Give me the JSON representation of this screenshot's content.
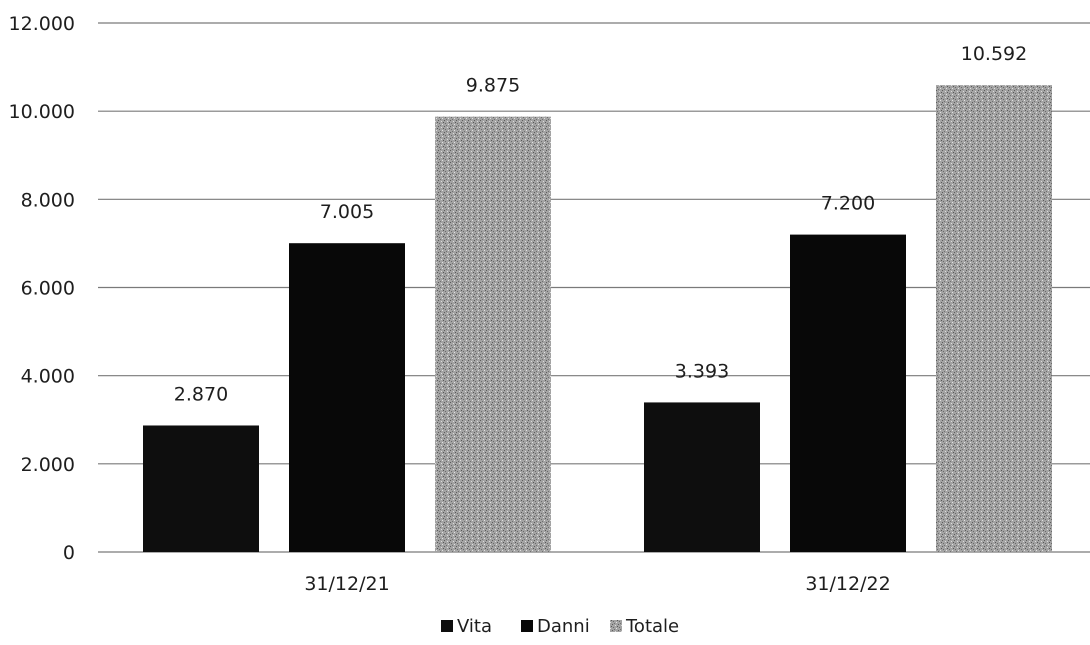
{
  "chart_data": {
    "type": "bar",
    "categories": [
      "31/12/21",
      "31/12/22"
    ],
    "series": [
      {
        "name": "Vita",
        "values": [
          2870,
          3393
        ],
        "color": "#0e0e0e"
      },
      {
        "name": "Danni",
        "values": [
          7005,
          7200
        ],
        "color": "#080808"
      },
      {
        "name": "Totale",
        "values": [
          9875,
          10592
        ],
        "color": "#a6a6a6"
      }
    ],
    "data_labels": [
      [
        "2.870",
        "3.393"
      ],
      [
        "7.005",
        "7.200"
      ],
      [
        "9.875",
        "10.592"
      ]
    ],
    "y_ticks": [
      0,
      2000,
      4000,
      6000,
      8000,
      10000,
      12000
    ],
    "y_tick_labels": [
      "0",
      "2.000",
      "4.000",
      "6.000",
      "8.000",
      "10.000",
      "12.000"
    ],
    "ylim": [
      0,
      12000
    ],
    "title": "",
    "xlabel": "",
    "ylabel": "",
    "grid": true,
    "legend_position": "bottom"
  }
}
